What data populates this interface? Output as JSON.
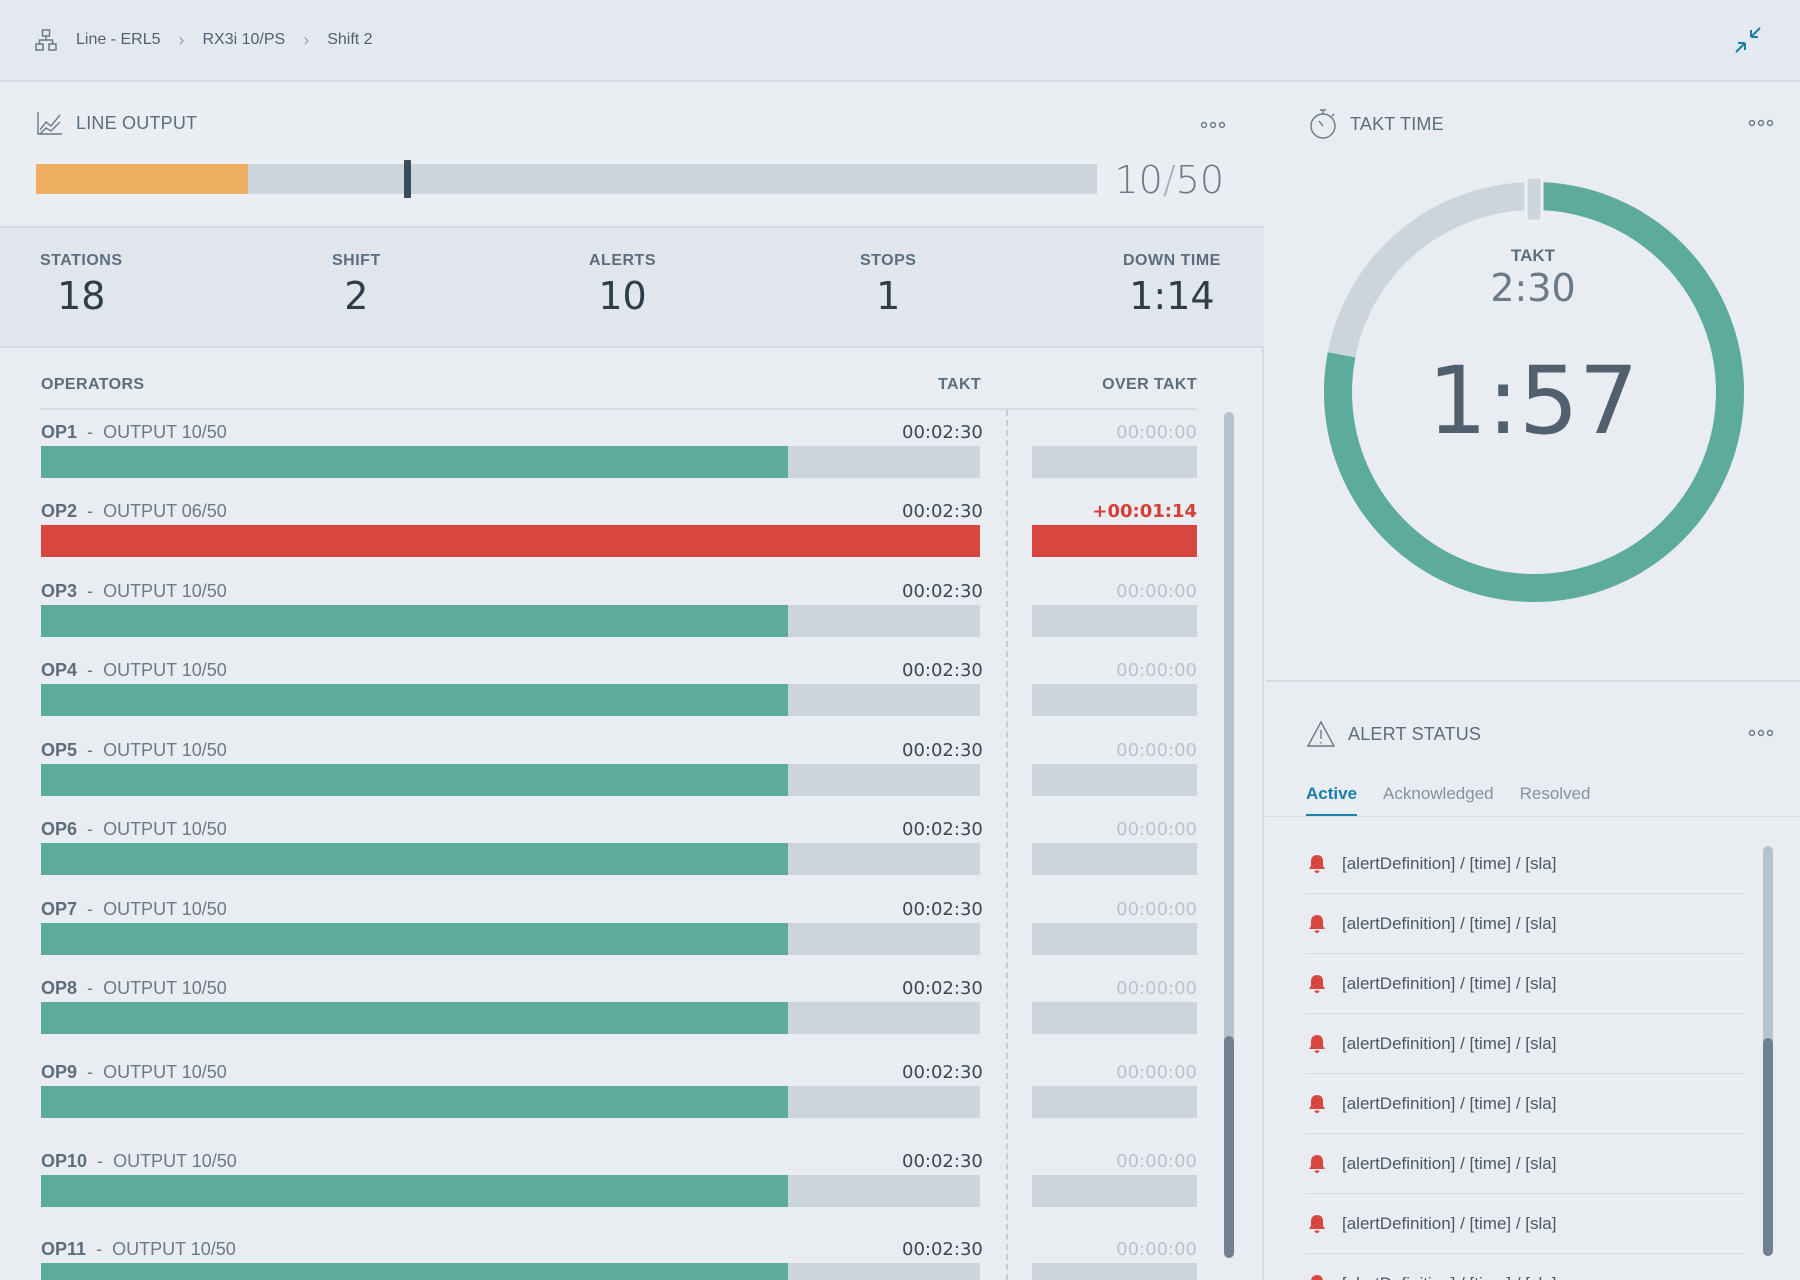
{
  "breadcrumb": {
    "items": [
      "Line - ERL5",
      "RX3i 10/PS",
      "Shift 2"
    ],
    "separator": "›"
  },
  "line_output": {
    "title": "LINE OUTPUT",
    "current": "10",
    "slash": "/",
    "target": "50",
    "progress_fraction": 0.2,
    "marker_fraction": 0.35,
    "fill_color": "#eeae62"
  },
  "stats": [
    {
      "label": "STATIONS",
      "value": "18"
    },
    {
      "label": "SHIFT",
      "value": "2"
    },
    {
      "label": "ALERTS",
      "value": "10"
    },
    {
      "label": "STOPS",
      "value": "1"
    },
    {
      "label": "DOWN TIME",
      "value": "1:14"
    }
  ],
  "operators": {
    "header": {
      "col1": "OPERATORS",
      "col2": "TAKT",
      "col3": "OVER TAKT"
    },
    "rows": [
      {
        "op": "OP1",
        "sep": "-",
        "output": "OUTPUT 10/50",
        "takt": "00:02:30",
        "over": "00:00:00",
        "fraction": 0.796,
        "alert": false
      },
      {
        "op": "OP2",
        "sep": "-",
        "output": "OUTPUT 06/50",
        "takt": "00:02:30",
        "over": "+00:01:14",
        "fraction": 1.0,
        "alert": true
      },
      {
        "op": "OP3",
        "sep": "-",
        "output": "OUTPUT 10/50",
        "takt": "00:02:30",
        "over": "00:00:00",
        "fraction": 0.796,
        "alert": false
      },
      {
        "op": "OP4",
        "sep": "-",
        "output": "OUTPUT 10/50",
        "takt": "00:02:30",
        "over": "00:00:00",
        "fraction": 0.796,
        "alert": false
      },
      {
        "op": "OP5",
        "sep": "-",
        "output": "OUTPUT 10/50",
        "takt": "00:02:30",
        "over": "00:00:00",
        "fraction": 0.796,
        "alert": false
      },
      {
        "op": "OP6",
        "sep": "-",
        "output": "OUTPUT 10/50",
        "takt": "00:02:30",
        "over": "00:00:00",
        "fraction": 0.796,
        "alert": false
      },
      {
        "op": "OP7",
        "sep": "-",
        "output": "OUTPUT 10/50",
        "takt": "00:02:30",
        "over": "00:00:00",
        "fraction": 0.796,
        "alert": false
      },
      {
        "op": "OP8",
        "sep": "-",
        "output": "OUTPUT 10/50",
        "takt": "00:02:30",
        "over": "00:00:00",
        "fraction": 0.796,
        "alert": false
      },
      {
        "op": "OP9",
        "sep": "-",
        "output": "OUTPUT 10/50",
        "takt": "00:02:30",
        "over": "00:00:00",
        "fraction": 0.796,
        "alert": false
      },
      {
        "op": "OP10",
        "sep": "-",
        "output": "OUTPUT 10/50",
        "takt": "00:02:30",
        "over": "00:00:00",
        "fraction": 0.796,
        "alert": false
      },
      {
        "op": "OP11",
        "sep": "-",
        "output": "OUTPUT 10/50",
        "takt": "00:02:30",
        "over": "00:00:00",
        "fraction": 0.796,
        "alert": false
      }
    ]
  },
  "takt_time": {
    "title": "TAKT TIME",
    "takt_label": "TAKT",
    "takt_value": "2:30",
    "remaining": "1:57",
    "elapsed_fraction": 0.78,
    "ring_color": "#5dab9c",
    "track_color": "#ccd4dc"
  },
  "alert_status": {
    "title": "ALERT STATUS",
    "tabs": [
      "Active",
      "Acknowledged",
      "Resolved"
    ],
    "active_tab": "Active",
    "items": [
      "[alertDefinition] / [time] / [sla]",
      "[alertDefinition] / [time] / [sla]",
      "[alertDefinition] / [time] / [sla]",
      "[alertDefinition] / [time] / [sla]",
      "[alertDefinition] / [time] / [sla]",
      "[alertDefinition] / [time] / [sla]",
      "[alertDefinition] / [time] / [sla]",
      "[alertDefinition] / [time] / [sla]"
    ],
    "bell_color": "#d8473f"
  },
  "icons": {
    "breadcrumb": "hierarchy-icon",
    "collapse": "collapse-icon",
    "line_output": "line-chart-icon",
    "takt_time": "stopwatch-icon",
    "alert_status": "warning-icon",
    "more": "more-icon",
    "alert_item": "bell-icon"
  }
}
